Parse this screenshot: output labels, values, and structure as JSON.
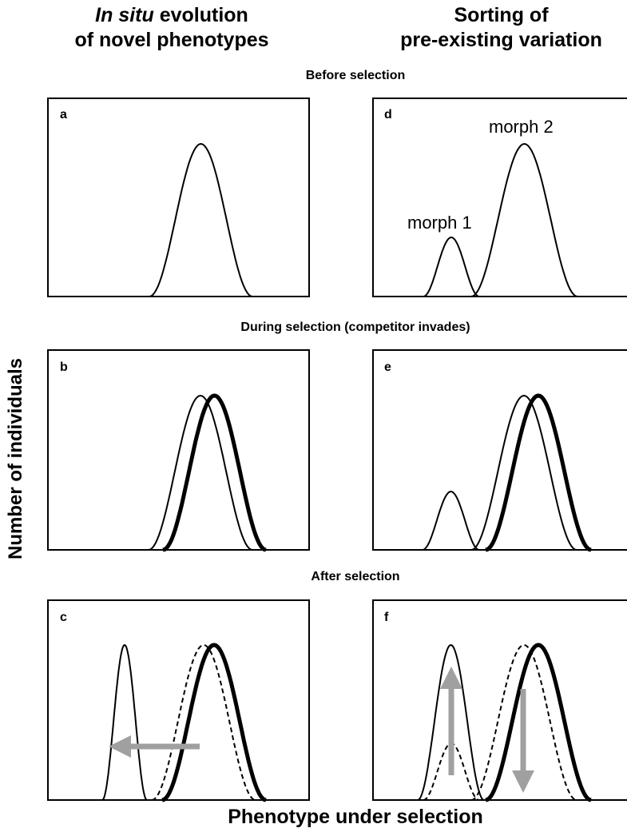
{
  "headers": {
    "left_line1_italic": "In situ",
    "left_line1_rest": " evolution",
    "left_line2": "of novel phenotypes",
    "right_line1": "Sorting of",
    "right_line2": "pre-existing variation"
  },
  "row_labels": {
    "before": "Before selection",
    "during": "During selection (competitor invades)",
    "after": "After selection"
  },
  "axes": {
    "y_label": "Number of individuals",
    "x_label": "Phenotype under selection"
  },
  "panels": {
    "a": "a",
    "b": "b",
    "c": "c",
    "d": "d",
    "e": "e",
    "f": "f"
  },
  "morphs": {
    "morph1": "morph 1",
    "morph2": "morph 2"
  },
  "colors": {
    "line": "#000000",
    "arrow": "#a0a0a0"
  }
}
